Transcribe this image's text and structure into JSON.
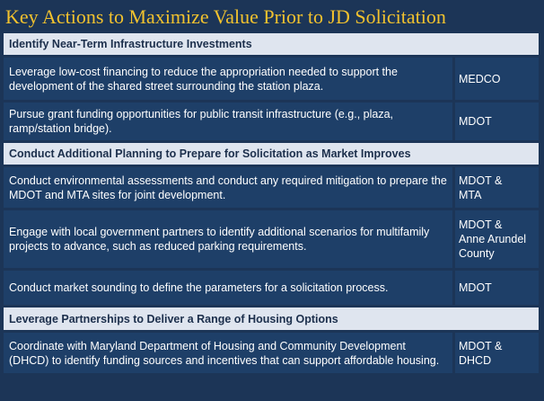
{
  "page": {
    "title": "Key Actions to Maximize Value Prior to JD Solicitation"
  },
  "sections": [
    {
      "header": "Identify Near-Term Infrastructure Investments",
      "rows": [
        {
          "action": "Leverage low-cost financing to reduce the appropriation needed to support the development of the shared street surrounding the station plaza.",
          "owner": "MEDCO"
        },
        {
          "action": "Pursue grant funding opportunities for public transit infrastructure (e.g., plaza, ramp/station bridge).",
          "owner": "MDOT"
        }
      ]
    },
    {
      "header": "Conduct Additional Planning to Prepare for Solicitation as Market Improves",
      "rows": [
        {
          "action": "Conduct environmental assessments and conduct any required mitigation to prepare the MDOT and MTA sites for joint development.",
          "owner": "MDOT &\nMTA"
        },
        {
          "action": "Engage with local government partners to identify additional scenarios for multifamily projects to advance, such as reduced parking requirements.",
          "owner": "MDOT &\nAnne Arundel\nCounty"
        },
        {
          "action": "Conduct market sounding to define the parameters for a solicitation process.",
          "owner": "MDOT"
        }
      ]
    },
    {
      "header": "Leverage Partnerships to Deliver a Range of Housing Options",
      "rows": [
        {
          "action": "Coordinate with Maryland Department of Housing and Community Development (DHCD) to identify funding sources and incentives that can support affordable housing.",
          "owner": "MDOT &\nDHCD"
        }
      ]
    }
  ],
  "colors": {
    "background": "#1c3557",
    "title": "#f2c22e",
    "section_header_bg": "#dfe5ef",
    "section_header_text": "#1c2f4c",
    "cell_bg": "#1e3f68",
    "cell_text": "#ffffff"
  }
}
